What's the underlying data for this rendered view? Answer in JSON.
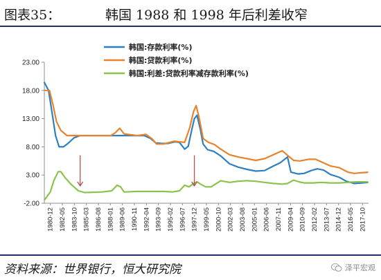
{
  "header": {
    "label": "图表35：",
    "title": "韩国 1988 和 1998 年后利差收窄"
  },
  "footer": {
    "source": "资料来源：世界银行，恒大研究院",
    "watermark": "泽平宏观",
    "watermark_icon": "wechat-icon"
  },
  "chart_data": {
    "type": "line",
    "title": "",
    "xlabel": "",
    "ylabel": "",
    "ylim": [
      -2,
      23
    ],
    "yticks": [
      "-2.00",
      "3.00",
      "8.00",
      "13.00",
      "18.00",
      "23.00"
    ],
    "grid": false,
    "legend_position": "top-left",
    "x_tick_labels": [
      "1980-12",
      "1982-05",
      "1983-10",
      "1985-03",
      "1986-08",
      "1988-01",
      "1989-06",
      "1990-11",
      "1992-04",
      "1993-09",
      "1995-02",
      "1996-07",
      "1997-12",
      "1999-05",
      "2000-10",
      "2002-03",
      "2003-08",
      "2005-01",
      "2006-06",
      "2007-11",
      "2009-04",
      "2010-09",
      "2012-02",
      "2013-07",
      "2014-12",
      "2016-05",
      "2017-10"
    ],
    "x_start": 1980.92,
    "x_end": 2017.83,
    "arrows_at_x": [
      1985.0,
      1998.0
    ],
    "series": [
      {
        "name": "韩国:存款利率(%)",
        "color": "#2e7fc1",
        "points": [
          [
            1980.9,
            19.5
          ],
          [
            1981.4,
            18.0
          ],
          [
            1981.8,
            14.0
          ],
          [
            1982.2,
            10.0
          ],
          [
            1982.6,
            8.0
          ],
          [
            1983.1,
            8.0
          ],
          [
            1983.6,
            8.6
          ],
          [
            1984.3,
            9.6
          ],
          [
            1985.0,
            10.0
          ],
          [
            1986.5,
            10.0
          ],
          [
            1988.0,
            10.0
          ],
          [
            1989.5,
            10.0
          ],
          [
            1991.0,
            10.0
          ],
          [
            1992.3,
            10.0
          ],
          [
            1993.0,
            9.5
          ],
          [
            1993.6,
            8.7
          ],
          [
            1994.3,
            8.6
          ],
          [
            1995.0,
            8.6
          ],
          [
            1995.8,
            8.9
          ],
          [
            1996.3,
            8.8
          ],
          [
            1996.9,
            7.6
          ],
          [
            1997.3,
            8.1
          ],
          [
            1997.7,
            11.0
          ],
          [
            1998.0,
            13.0
          ],
          [
            1998.3,
            13.6
          ],
          [
            1998.7,
            11.0
          ],
          [
            1999.0,
            8.5
          ],
          [
            1999.5,
            7.5
          ],
          [
            2000.2,
            7.2
          ],
          [
            2001.0,
            6.4
          ],
          [
            2002.0,
            5.0
          ],
          [
            2003.0,
            4.4
          ],
          [
            2004.0,
            4.0
          ],
          [
            2005.0,
            3.7
          ],
          [
            2006.0,
            3.8
          ],
          [
            2007.0,
            4.6
          ],
          [
            2007.8,
            5.2
          ],
          [
            2008.6,
            6.2
          ],
          [
            2009.0,
            3.5
          ],
          [
            2009.8,
            3.2
          ],
          [
            2010.5,
            3.3
          ],
          [
            2011.3,
            3.8
          ],
          [
            2012.0,
            4.1
          ],
          [
            2012.7,
            3.9
          ],
          [
            2013.5,
            3.1
          ],
          [
            2014.5,
            2.6
          ],
          [
            2015.3,
            1.9
          ],
          [
            2016.2,
            1.5
          ],
          [
            2017.0,
            1.6
          ],
          [
            2017.8,
            1.7
          ]
        ]
      },
      {
        "name": "韩国:贷款利率(%)",
        "color": "#e8822c",
        "points": [
          [
            1980.9,
            18.0
          ],
          [
            1981.5,
            18.0
          ],
          [
            1981.9,
            15.5
          ],
          [
            1982.3,
            12.5
          ],
          [
            1982.8,
            10.9
          ],
          [
            1983.5,
            10.0
          ],
          [
            1984.5,
            10.0
          ],
          [
            1986.0,
            10.0
          ],
          [
            1987.5,
            10.0
          ],
          [
            1988.5,
            10.0
          ],
          [
            1989.0,
            10.5
          ],
          [
            1989.5,
            11.3
          ],
          [
            1990.0,
            10.3
          ],
          [
            1991.5,
            10.0
          ],
          [
            1992.5,
            10.2
          ],
          [
            1993.2,
            9.4
          ],
          [
            1993.7,
            8.5
          ],
          [
            1994.5,
            8.5
          ],
          [
            1995.2,
            8.8
          ],
          [
            1995.7,
            9.0
          ],
          [
            1996.3,
            8.9
          ],
          [
            1996.9,
            8.8
          ],
          [
            1997.5,
            11.5
          ],
          [
            1997.9,
            14.2
          ],
          [
            1998.2,
            15.3
          ],
          [
            1998.5,
            13.5
          ],
          [
            1999.0,
            9.5
          ],
          [
            1999.6,
            8.8
          ],
          [
            2000.3,
            8.4
          ],
          [
            2001.0,
            7.6
          ],
          [
            2002.0,
            6.6
          ],
          [
            2003.0,
            6.2
          ],
          [
            2004.0,
            5.9
          ],
          [
            2005.0,
            5.6
          ],
          [
            2006.0,
            5.9
          ],
          [
            2007.0,
            6.6
          ],
          [
            2008.0,
            7.3
          ],
          [
            2008.6,
            6.5
          ],
          [
            2009.3,
            5.6
          ],
          [
            2010.0,
            5.5
          ],
          [
            2011.0,
            5.8
          ],
          [
            2011.8,
            5.8
          ],
          [
            2012.5,
            5.3
          ],
          [
            2013.5,
            4.6
          ],
          [
            2014.5,
            4.3
          ],
          [
            2015.5,
            3.5
          ],
          [
            2016.2,
            3.3
          ],
          [
            2017.0,
            3.4
          ],
          [
            2017.8,
            3.5
          ]
        ]
      },
      {
        "name": "韩国:利差:贷款利率减存款利率(%)",
        "color": "#8bc34a",
        "points": [
          [
            1980.9,
            -1.5
          ],
          [
            1981.6,
            0.0
          ],
          [
            1982.0,
            2.0
          ],
          [
            1982.5,
            3.6
          ],
          [
            1982.8,
            3.6
          ],
          [
            1983.3,
            2.5
          ],
          [
            1984.0,
            1.3
          ],
          [
            1984.8,
            0.2
          ],
          [
            1985.5,
            -0.1
          ],
          [
            1987.5,
            0.0
          ],
          [
            1988.6,
            0.2
          ],
          [
            1989.2,
            1.2
          ],
          [
            1989.6,
            0.9
          ],
          [
            1990.0,
            0.0
          ],
          [
            1991.5,
            0.1
          ],
          [
            1993.0,
            0.1
          ],
          [
            1994.5,
            0.1
          ],
          [
            1995.5,
            0.0
          ],
          [
            1996.3,
            0.2
          ],
          [
            1996.9,
            1.2
          ],
          [
            1997.4,
            0.9
          ],
          [
            1997.9,
            1.5
          ],
          [
            1998.3,
            1.8
          ],
          [
            1998.7,
            1.4
          ],
          [
            1999.3,
            0.9
          ],
          [
            1999.9,
            0.9
          ],
          [
            2000.5,
            1.5
          ],
          [
            2001.0,
            2.0
          ],
          [
            2002.0,
            1.7
          ],
          [
            2003.0,
            1.9
          ],
          [
            2004.0,
            2.0
          ],
          [
            2005.0,
            1.9
          ],
          [
            2006.0,
            1.7
          ],
          [
            2007.0,
            1.5
          ],
          [
            2008.0,
            1.4
          ],
          [
            2008.6,
            1.5
          ],
          [
            2009.3,
            2.1
          ],
          [
            2009.9,
            1.8
          ],
          [
            2010.5,
            1.6
          ],
          [
            2011.5,
            1.6
          ],
          [
            2012.5,
            1.7
          ],
          [
            2013.5,
            1.6
          ],
          [
            2014.5,
            1.6
          ],
          [
            2015.5,
            1.7
          ],
          [
            2016.5,
            1.8
          ],
          [
            2017.8,
            1.8
          ]
        ]
      }
    ]
  },
  "colors": {
    "rule": "#1f2d6b",
    "arrow": "#b1524a",
    "axis": "#8c8c8c"
  }
}
